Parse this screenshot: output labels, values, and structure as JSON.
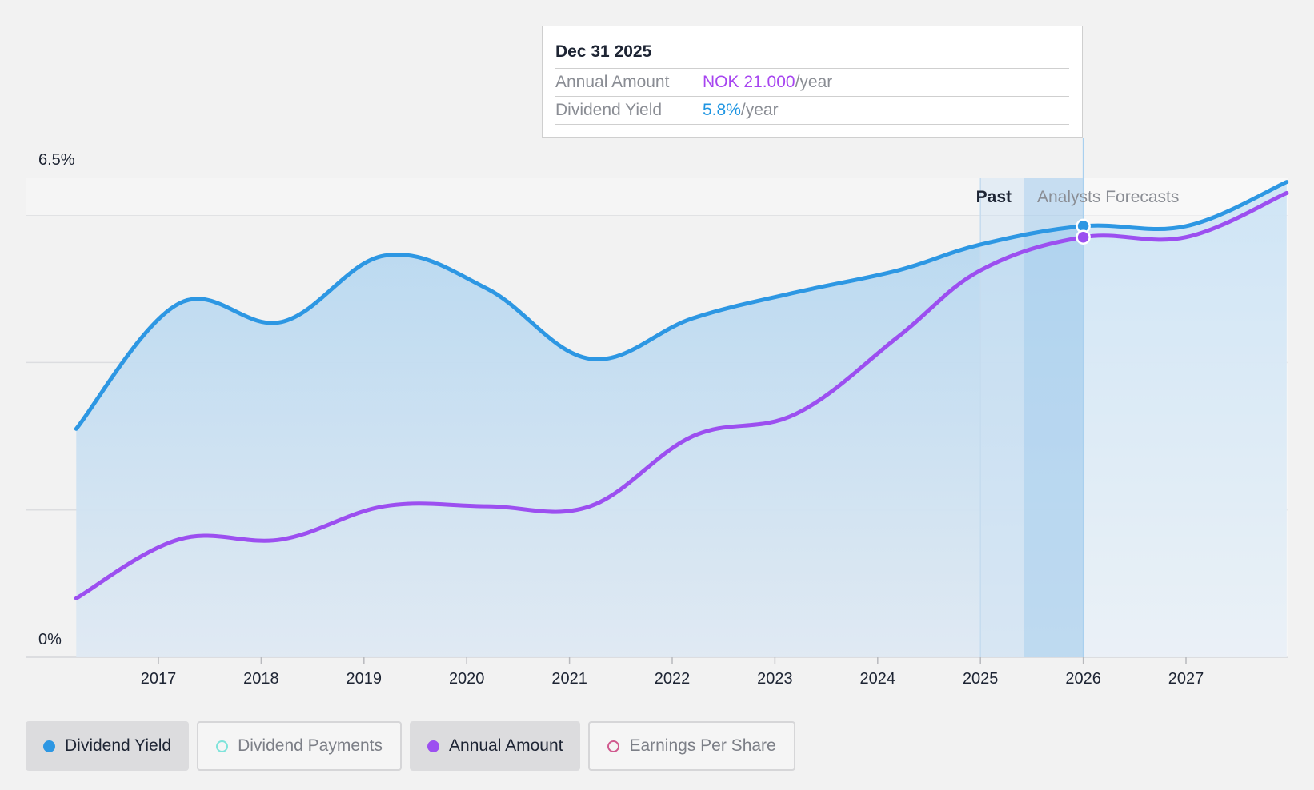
{
  "tooltip": {
    "date": "Dec 31 2025",
    "rows": [
      {
        "label": "Annual Amount",
        "value": "NOK 21.000",
        "unit": "/year",
        "color": "#a745f0"
      },
      {
        "label": "Dividend Yield",
        "value": "5.8%",
        "unit": "/year",
        "color": "#1f95e2"
      }
    ]
  },
  "chart_labels": {
    "past": "Past",
    "forecast": "Analysts Forecasts"
  },
  "legend": [
    {
      "label": "Dividend Yield",
      "color": "#2d97e3",
      "active": true,
      "filled": true
    },
    {
      "label": "Dividend Payments",
      "color": "#7ee3da",
      "active": false,
      "filled": false
    },
    {
      "label": "Annual Amount",
      "color": "#9c4ff0",
      "active": true,
      "filled": true
    },
    {
      "label": "Earnings Per Share",
      "color": "#d0598e",
      "active": false,
      "filled": false
    }
  ],
  "chart_data": {
    "type": "line",
    "x_ticks": [
      "2017",
      "2018",
      "2019",
      "2020",
      "2021",
      "2022",
      "2023",
      "2024",
      "2025",
      "2026",
      "2027"
    ],
    "y_ticks": [
      "0%",
      "6.5%"
    ],
    "ylim": [
      0,
      6.5
    ],
    "grid": true,
    "past_region": [
      "2025.0",
      "2026.0"
    ],
    "forecast_from": "2026.0",
    "highlight_x": "2026.0",
    "series": [
      {
        "name": "Dividend Yield",
        "color": "#2d97e3",
        "fill": true,
        "points": [
          [
            2016.2,
            3.1
          ],
          [
            2017.2,
            4.8
          ],
          [
            2018.2,
            4.55
          ],
          [
            2019.2,
            5.45
          ],
          [
            2020.2,
            5.0
          ],
          [
            2021.2,
            4.05
          ],
          [
            2022.2,
            4.6
          ],
          [
            2023.2,
            4.95
          ],
          [
            2024.2,
            5.25
          ],
          [
            2025.0,
            5.6
          ],
          [
            2026.0,
            5.85
          ],
          [
            2027.0,
            5.85
          ],
          [
            2027.98,
            6.45
          ]
        ]
      },
      {
        "name": "Annual Amount",
        "color": "#9c4ff0",
        "fill": false,
        "points": [
          [
            2016.2,
            0.8
          ],
          [
            2017.2,
            1.6
          ],
          [
            2018.2,
            1.6
          ],
          [
            2019.2,
            2.05
          ],
          [
            2020.2,
            2.05
          ],
          [
            2021.2,
            2.05
          ],
          [
            2022.2,
            3.0
          ],
          [
            2023.2,
            3.3
          ],
          [
            2024.2,
            4.35
          ],
          [
            2025.0,
            5.25
          ],
          [
            2026.0,
            5.7
          ],
          [
            2027.0,
            5.7
          ],
          [
            2027.98,
            6.3
          ]
        ]
      }
    ]
  }
}
